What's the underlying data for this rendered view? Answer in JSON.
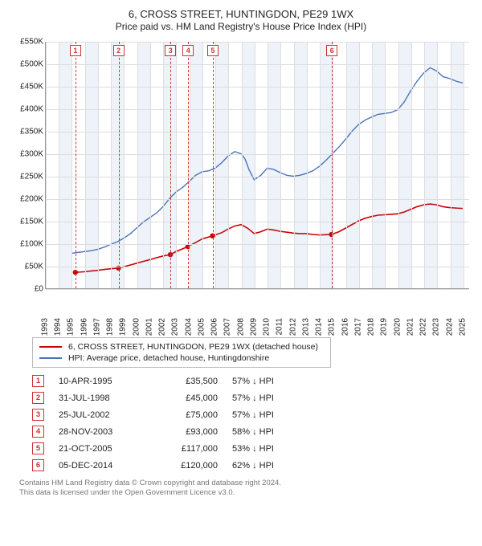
{
  "title": "6, CROSS STREET, HUNTINGDON, PE29 1WX",
  "subtitle": "Price paid vs. HM Land Registry's House Price Index (HPI)",
  "chart": {
    "type": "line",
    "background_color": "#ffffff",
    "grid_color": "#dddddd",
    "axis_color": "#999999",
    "band_color": "rgba(90,130,200,0.10)",
    "x": {
      "min": 1993,
      "max": 2025.5,
      "tick_step": 1,
      "label_fontsize": 10
    },
    "y": {
      "min": 0,
      "max": 550000,
      "tick_step": 50000,
      "prefix": "£",
      "suffix": "K",
      "divide": 1000,
      "label_fontsize": 10
    },
    "series": [
      {
        "name": "property",
        "label": "6, CROSS STREET, HUNTINGDON, PE29 1WX (detached house)",
        "color": "#cc0000",
        "width": 1.6,
        "points": [
          [
            1995.27,
            35500
          ],
          [
            1995.6,
            36000
          ],
          [
            1996.0,
            37000
          ],
          [
            1996.5,
            38500
          ],
          [
            1997.0,
            40000
          ],
          [
            1997.5,
            42000
          ],
          [
            1998.0,
            43500
          ],
          [
            1998.58,
            45000
          ],
          [
            1999.0,
            48000
          ],
          [
            1999.5,
            52000
          ],
          [
            2000.0,
            56000
          ],
          [
            2000.5,
            60000
          ],
          [
            2001.0,
            64000
          ],
          [
            2001.5,
            68000
          ],
          [
            2002.0,
            72000
          ],
          [
            2002.56,
            75000
          ],
          [
            2003.0,
            82000
          ],
          [
            2003.5,
            88000
          ],
          [
            2003.91,
            93000
          ],
          [
            2004.5,
            102000
          ],
          [
            2005.0,
            110000
          ],
          [
            2005.8,
            117000
          ],
          [
            2006.5,
            124000
          ],
          [
            2007.0,
            132000
          ],
          [
            2007.5,
            139000
          ],
          [
            2008.0,
            142000
          ],
          [
            2008.5,
            134000
          ],
          [
            2009.0,
            122000
          ],
          [
            2009.5,
            126000
          ],
          [
            2010.0,
            132000
          ],
          [
            2010.5,
            130000
          ],
          [
            2011.0,
            127000
          ],
          [
            2011.5,
            125000
          ],
          [
            2012.0,
            123000
          ],
          [
            2012.5,
            122000
          ],
          [
            2013.0,
            122000
          ],
          [
            2013.5,
            120000
          ],
          [
            2014.0,
            119000
          ],
          [
            2014.5,
            119500
          ],
          [
            2014.93,
            120000
          ],
          [
            2015.5,
            126000
          ],
          [
            2016.0,
            134000
          ],
          [
            2016.5,
            142000
          ],
          [
            2017.0,
            150000
          ],
          [
            2017.5,
            156000
          ],
          [
            2018.0,
            160000
          ],
          [
            2018.5,
            163000
          ],
          [
            2019.0,
            164000
          ],
          [
            2019.5,
            165000
          ],
          [
            2020.0,
            166000
          ],
          [
            2020.5,
            170000
          ],
          [
            2021.0,
            176000
          ],
          [
            2021.5,
            182000
          ],
          [
            2022.0,
            186000
          ],
          [
            2022.5,
            188000
          ],
          [
            2023.0,
            186000
          ],
          [
            2023.5,
            182000
          ],
          [
            2024.0,
            180000
          ],
          [
            2024.5,
            179000
          ],
          [
            2025.0,
            178000
          ]
        ],
        "markers": [
          [
            1995.27,
            35500
          ],
          [
            1998.58,
            45000
          ],
          [
            2002.56,
            75000
          ],
          [
            2003.91,
            93000
          ],
          [
            2005.8,
            117000
          ],
          [
            2014.93,
            120000
          ]
        ]
      },
      {
        "name": "hpi",
        "label": "HPI: Average price, detached house, Huntingdonshire",
        "color": "#4a74b8",
        "width": 1.4,
        "points": [
          [
            1995.0,
            78000
          ],
          [
            1995.5,
            80000
          ],
          [
            1996.0,
            82000
          ],
          [
            1996.5,
            84000
          ],
          [
            1997.0,
            87000
          ],
          [
            1997.5,
            92000
          ],
          [
            1998.0,
            98000
          ],
          [
            1998.5,
            104000
          ],
          [
            1999.0,
            112000
          ],
          [
            1999.5,
            122000
          ],
          [
            2000.0,
            135000
          ],
          [
            2000.5,
            148000
          ],
          [
            2001.0,
            158000
          ],
          [
            2001.5,
            168000
          ],
          [
            2002.0,
            182000
          ],
          [
            2002.5,
            200000
          ],
          [
            2003.0,
            215000
          ],
          [
            2003.5,
            225000
          ],
          [
            2004.0,
            238000
          ],
          [
            2004.5,
            252000
          ],
          [
            2005.0,
            260000
          ],
          [
            2005.5,
            262000
          ],
          [
            2006.0,
            268000
          ],
          [
            2006.5,
            280000
          ],
          [
            2007.0,
            295000
          ],
          [
            2007.5,
            305000
          ],
          [
            2008.0,
            300000
          ],
          [
            2008.3,
            288000
          ],
          [
            2008.6,
            265000
          ],
          [
            2009.0,
            242000
          ],
          [
            2009.5,
            252000
          ],
          [
            2010.0,
            268000
          ],
          [
            2010.5,
            265000
          ],
          [
            2011.0,
            258000
          ],
          [
            2011.5,
            252000
          ],
          [
            2012.0,
            250000
          ],
          [
            2012.5,
            252000
          ],
          [
            2013.0,
            256000
          ],
          [
            2013.5,
            262000
          ],
          [
            2014.0,
            272000
          ],
          [
            2014.5,
            285000
          ],
          [
            2015.0,
            300000
          ],
          [
            2015.5,
            315000
          ],
          [
            2016.0,
            332000
          ],
          [
            2016.5,
            350000
          ],
          [
            2017.0,
            365000
          ],
          [
            2017.5,
            375000
          ],
          [
            2018.0,
            382000
          ],
          [
            2018.5,
            388000
          ],
          [
            2019.0,
            390000
          ],
          [
            2019.5,
            392000
          ],
          [
            2020.0,
            398000
          ],
          [
            2020.5,
            415000
          ],
          [
            2021.0,
            440000
          ],
          [
            2021.5,
            462000
          ],
          [
            2022.0,
            480000
          ],
          [
            2022.5,
            492000
          ],
          [
            2023.0,
            485000
          ],
          [
            2023.5,
            472000
          ],
          [
            2024.0,
            468000
          ],
          [
            2024.5,
            462000
          ],
          [
            2025.0,
            458000
          ]
        ]
      }
    ],
    "shaded_years": [
      [
        1994,
        1995
      ],
      [
        1996,
        1997
      ],
      [
        1998,
        1999
      ],
      [
        2000,
        2001
      ],
      [
        2002,
        2003
      ],
      [
        2004,
        2005
      ],
      [
        2006,
        2007
      ],
      [
        2008,
        2009
      ],
      [
        2010,
        2011
      ],
      [
        2012,
        2013
      ],
      [
        2014,
        2015
      ],
      [
        2016,
        2017
      ],
      [
        2018,
        2019
      ],
      [
        2020,
        2021
      ],
      [
        2022,
        2023
      ],
      [
        2024,
        2025
      ]
    ],
    "transactions": [
      {
        "n": 1,
        "x": 1995.27
      },
      {
        "n": 2,
        "x": 1998.58
      },
      {
        "n": 3,
        "x": 2002.56
      },
      {
        "n": 4,
        "x": 2003.91
      },
      {
        "n": 5,
        "x": 2005.8
      },
      {
        "n": 6,
        "x": 2014.93
      }
    ]
  },
  "legend": {
    "items": [
      {
        "color": "#cc0000",
        "label": "6, CROSS STREET, HUNTINGDON, PE29 1WX (detached house)"
      },
      {
        "color": "#4a74b8",
        "label": "HPI: Average price, detached house, Huntingdonshire"
      }
    ]
  },
  "table": {
    "rows": [
      {
        "n": "1",
        "date": "10-APR-1995",
        "price": "£35,500",
        "pct": "57% ↓ HPI"
      },
      {
        "n": "2",
        "date": "31-JUL-1998",
        "price": "£45,000",
        "pct": "57% ↓ HPI"
      },
      {
        "n": "3",
        "date": "25-JUL-2002",
        "price": "£75,000",
        "pct": "57% ↓ HPI"
      },
      {
        "n": "4",
        "date": "28-NOV-2003",
        "price": "£93,000",
        "pct": "58% ↓ HPI"
      },
      {
        "n": "5",
        "date": "21-OCT-2005",
        "price": "£117,000",
        "pct": "53% ↓ HPI"
      },
      {
        "n": "6",
        "date": "05-DEC-2014",
        "price": "£120,000",
        "pct": "62% ↓ HPI"
      }
    ]
  },
  "footer": {
    "line1": "Contains HM Land Registry data © Crown copyright and database right 2024.",
    "line2": "This data is licensed under the Open Government Licence v3.0."
  }
}
